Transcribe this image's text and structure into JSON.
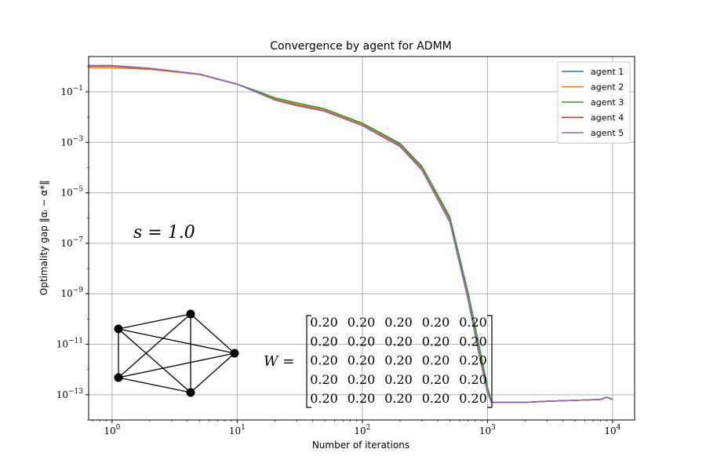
{
  "chart_data": {
    "type": "line",
    "title": "Convergence by agent for ADMM",
    "xlabel": "Number of iterations",
    "ylabel": "Optimality gap ‖αᵢ − α*‖",
    "xscale": "log",
    "yscale": "log",
    "xlim": [
      0.65,
      15000
    ],
    "ylim": [
      1e-14,
      2.5
    ],
    "grid": true,
    "legend_position": "top-right",
    "x_ticks": [
      {
        "value": 1,
        "base": "10",
        "exp": "0"
      },
      {
        "value": 10,
        "base": "10",
        "exp": "1"
      },
      {
        "value": 100,
        "base": "10",
        "exp": "2"
      },
      {
        "value": 1000,
        "base": "10",
        "exp": "3"
      },
      {
        "value": 10000,
        "base": "10",
        "exp": "4"
      }
    ],
    "y_ticks": [
      {
        "value": 0.1,
        "base": "10",
        "exp": "−1"
      },
      {
        "value": 0.001,
        "base": "10",
        "exp": "−3"
      },
      {
        "value": 1e-05,
        "base": "10",
        "exp": "−5"
      },
      {
        "value": 1e-07,
        "base": "10",
        "exp": "−7"
      },
      {
        "value": 1e-09,
        "base": "10",
        "exp": "−9"
      },
      {
        "value": 1e-11,
        "base": "10",
        "exp": "−11"
      },
      {
        "value": 1e-13,
        "base": "10",
        "exp": "−13"
      }
    ],
    "series": [
      {
        "name": "agent 1",
        "color": "#1f77b4",
        "x": [
          0.65,
          1,
          2,
          5,
          10,
          15,
          20,
          30,
          50,
          100,
          200,
          300,
          500,
          700,
          850,
          1000,
          1080,
          2000,
          3000,
          5000,
          8000,
          9000,
          10000
        ],
        "y": [
          1.1,
          1.1,
          0.85,
          0.5,
          0.2,
          0.09,
          0.05,
          0.03,
          0.018,
          0.005,
          0.0008,
          0.0001,
          1e-06,
          1e-09,
          1e-11,
          2e-13,
          5e-14,
          5e-14,
          5.5e-14,
          6e-14,
          6.5e-14,
          8e-14,
          6.5e-14
        ]
      },
      {
        "name": "agent 2",
        "color": "#ff7f0e",
        "x": [
          0.65,
          1,
          2,
          5,
          10,
          15,
          20,
          30,
          50,
          100,
          200,
          300,
          500,
          700,
          850,
          1000,
          1080,
          2000,
          3000,
          5000,
          8000,
          9000,
          10000
        ],
        "y": [
          0.9,
          0.9,
          0.78,
          0.48,
          0.2,
          0.095,
          0.052,
          0.032,
          0.019,
          0.0052,
          0.00075,
          9e-05,
          8e-07,
          7e-10,
          6e-12,
          1.5e-13,
          5e-14,
          5e-14,
          5.5e-14,
          6e-14,
          6.5e-14,
          8e-14,
          6.5e-14
        ]
      },
      {
        "name": "agent 3",
        "color": "#2ca02c",
        "x": [
          0.65,
          1,
          2,
          5,
          10,
          15,
          20,
          30,
          50,
          100,
          200,
          300,
          500,
          700,
          850,
          1000,
          1080,
          2000,
          3000,
          5000,
          8000,
          9000,
          10000
        ],
        "y": [
          1.05,
          1.05,
          0.83,
          0.5,
          0.2,
          0.1,
          0.058,
          0.036,
          0.021,
          0.0057,
          0.0009,
          0.00011,
          1.1e-06,
          1.1e-09,
          1.1e-11,
          2e-13,
          5e-14,
          5e-14,
          5.5e-14,
          6e-14,
          6.5e-14,
          8e-14,
          6.5e-14
        ]
      },
      {
        "name": "agent 4",
        "color": "#d62728",
        "x": [
          0.65,
          1,
          2,
          5,
          10,
          15,
          20,
          30,
          50,
          100,
          200,
          300,
          500,
          700,
          850,
          1000,
          1080,
          2000,
          3000,
          5000,
          8000,
          9000,
          10000
        ],
        "y": [
          1.05,
          1.05,
          0.84,
          0.5,
          0.2,
          0.088,
          0.048,
          0.029,
          0.017,
          0.0047,
          0.0007,
          8e-05,
          7e-07,
          6e-10,
          5e-12,
          1.2e-13,
          5e-14,
          5e-14,
          5.5e-14,
          6e-14,
          6.5e-14,
          8e-14,
          6.5e-14
        ]
      },
      {
        "name": "agent 5",
        "color": "#9467bd",
        "x": [
          0.65,
          1,
          2,
          5,
          10,
          15,
          20,
          30,
          50,
          100,
          200,
          300,
          500,
          700,
          850,
          1000,
          1080,
          2000,
          3000,
          5000,
          8000,
          9000,
          10000
        ],
        "y": [
          1.1,
          1.1,
          0.86,
          0.5,
          0.2,
          0.087,
          0.047,
          0.028,
          0.017,
          0.0046,
          0.00068,
          7.8e-05,
          7e-07,
          6e-10,
          5e-12,
          1.2e-13,
          5e-14,
          5e-14,
          5.5e-14,
          6e-14,
          6.5e-14,
          8e-14,
          6.5e-14
        ]
      }
    ],
    "annotations": {
      "s_label": "s = 1.0",
      "w_label": "W =",
      "matrix": [
        [
          "0.20",
          "0.20",
          "0.20",
          "0.20",
          "0.20"
        ],
        [
          "0.20",
          "0.20",
          "0.20",
          "0.20",
          "0.20"
        ],
        [
          "0.20",
          "0.20",
          "0.20",
          "0.20",
          "0.20"
        ],
        [
          "0.20",
          "0.20",
          "0.20",
          "0.20",
          "0.20"
        ],
        [
          "0.20",
          "0.20",
          "0.20",
          "0.20",
          "0.20"
        ]
      ],
      "graph_edges": [
        [
          0,
          1
        ],
        [
          0,
          2
        ],
        [
          0,
          3
        ],
        [
          0,
          4
        ],
        [
          1,
          2
        ],
        [
          1,
          3
        ],
        [
          1,
          4
        ],
        [
          2,
          3
        ],
        [
          2,
          4
        ],
        [
          3,
          4
        ]
      ]
    }
  }
}
